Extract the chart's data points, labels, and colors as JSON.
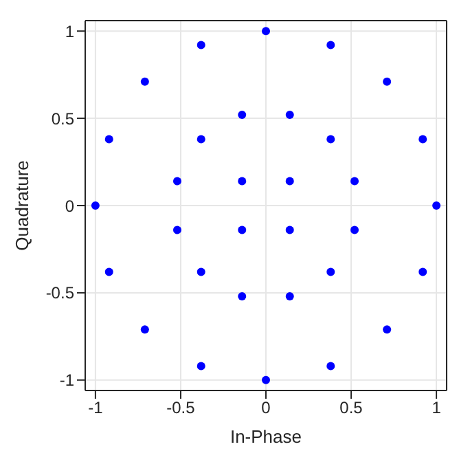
{
  "chart_data": {
    "type": "scatter",
    "xlabel": "In-Phase",
    "ylabel": "Quadrature",
    "x": [
      1,
      0.92,
      0.71,
      0.38,
      0,
      -0.38,
      -0.71,
      -0.92,
      -1,
      -0.92,
      -0.71,
      -0.38,
      0,
      0.38,
      0.71,
      0.92,
      0.52,
      0.38,
      0.14,
      -0.14,
      -0.38,
      -0.52,
      -0.52,
      -0.38,
      -0.14,
      0.14,
      0.38,
      0.52,
      0.14,
      -0.14,
      -0.14,
      0.14
    ],
    "series": [
      {
        "color": "#0000ff",
        "values": [
          0,
          0.38,
          0.71,
          0.92,
          1,
          0.92,
          0.71,
          0.38,
          0,
          -0.38,
          -0.71,
          -0.92,
          -1,
          -0.92,
          -0.71,
          -0.38,
          0.14,
          0.38,
          0.52,
          0.52,
          0.38,
          0.14,
          -0.14,
          -0.38,
          -0.52,
          -0.52,
          -0.38,
          -0.14,
          0.14,
          0.14,
          -0.14,
          -0.14
        ]
      }
    ],
    "xlim": [
      -1.06,
      1.06
    ],
    "ylim": [
      -1.06,
      1.06
    ],
    "xticks": [
      -1,
      -0.5,
      0,
      0.5,
      1
    ],
    "yticks": [
      -1,
      -0.5,
      0,
      0.5,
      1
    ],
    "grid": true,
    "marker": "circle",
    "legend": false
  }
}
